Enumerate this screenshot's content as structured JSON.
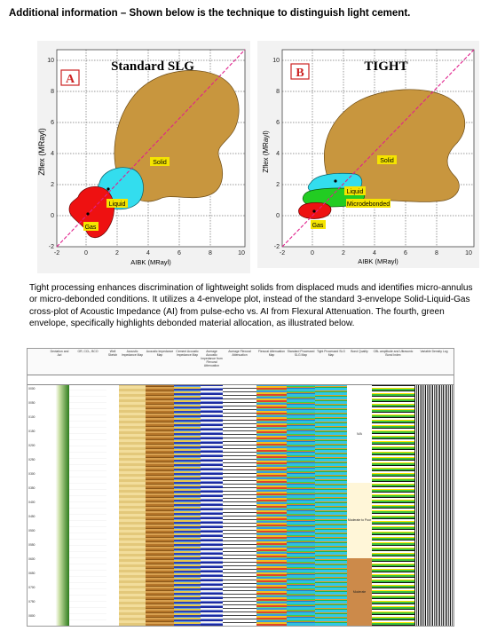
{
  "heading": "Additional information – Shown below is the technique to distinguish light cement.",
  "plot_a": {
    "letter": "A",
    "title": "Standard SLG",
    "xlabel": "AIBK (MRayl)",
    "ylabel": "Zflex (MRayl)",
    "x_ticks": [
      "-2",
      "0",
      "2",
      "4",
      "6",
      "8",
      "10"
    ],
    "y_ticks": [
      "-2",
      "0",
      "2",
      "4",
      "6",
      "8",
      "10"
    ],
    "labels": {
      "solid": "Solid",
      "liquid": "Liquid",
      "gas": "Gas"
    }
  },
  "plot_b": {
    "letter": "B",
    "title": "TIGHT",
    "xlabel": "AIBK (MRayl)",
    "ylabel": "Zflex (MRayl)",
    "x_ticks": [
      "-2",
      "0",
      "2",
      "4",
      "6",
      "8",
      "10"
    ],
    "y_ticks": [
      "-2",
      "0",
      "2",
      "4",
      "6",
      "8",
      "10"
    ],
    "labels": {
      "solid": "Solid",
      "liquid": "Liquid",
      "microdebonded": "Microdebonded",
      "gas": "Gas"
    }
  },
  "paragraph": "Tight processing enhances discrimination of lightweight solids from displaced muds and identifies micro-annulus or micro-debonded conditions. It utilizes a 4-envelope plot, instead of the standard 3-envelope Solid-Liquid-Gas cross-plot of Acoustic Impedance (AI) from pulse-echo vs. AI from Flexural Attenuation. The fourth, green envelope, specifically highlights debonded material allocation, as illustrated below.",
  "colors": {
    "solid": "#c8963e",
    "liquid": "#33ddee",
    "gas": "#ee1111",
    "microdebonded": "#22cc22",
    "diagonal": "#e0208c",
    "label_bg": "#f5e400"
  },
  "log": {
    "tracks": [
      "Deviation and Azi",
      "GR, CCL, BCO",
      "Well Sketch",
      "Acoustic Impedance Map",
      "Acoustic Impedance Map",
      "Cement Acoustic Impedance Map",
      "Average Acoustic Impedance from Flexural Attenuation",
      "Average Flexural Attenuation",
      "Flexural Attenuation Map",
      "Standard Processed SLG Map",
      "Tight Processed SLG Map",
      "Bond Quality",
      "CBL amplitude and Ultrasonic Bond Index",
      "Variable Density Log"
    ],
    "depths": [
      "X000",
      "X050",
      "X100",
      "X150",
      "X200",
      "X250",
      "X300",
      "X350",
      "X400",
      "X450",
      "X500",
      "X550",
      "X600",
      "X650",
      "X700",
      "X750",
      "X800"
    ],
    "bond_zones": [
      "N/A",
      "Moderate to Poor",
      "Moderate"
    ]
  }
}
